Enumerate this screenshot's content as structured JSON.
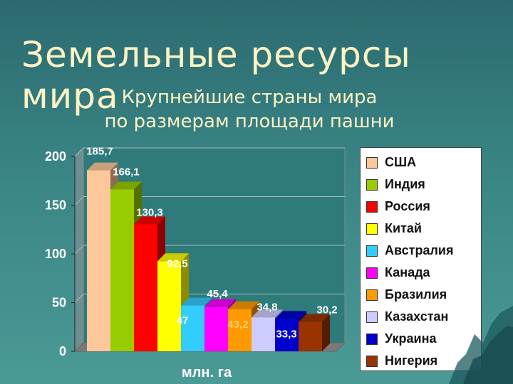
{
  "title": "Земельные ресурсы мира",
  "subtitle": {
    "line1": "Крупнейшие страны мира",
    "line2": "по размерам площади пашни"
  },
  "chart_data": {
    "type": "bar",
    "categories": [
      "США",
      "Индия",
      "Россия",
      "Китай",
      "Австралия",
      "Канада",
      "Бразилия",
      "Казахстан",
      "Украина",
      "Нигерия"
    ],
    "values": [
      185.7,
      166.1,
      130.3,
      92.5,
      47,
      45.4,
      43.2,
      34.8,
      33.3,
      30.2
    ],
    "value_labels": [
      "185,7",
      "166,1",
      "130,3",
      "92,5",
      "47",
      "45,4",
      "43,2",
      "34,8",
      "33,3",
      "30,2"
    ],
    "colors": [
      "#fcc79a",
      "#99cc00",
      "#ff0000",
      "#ffff00",
      "#33ccff",
      "#ff00ff",
      "#ff9900",
      "#ccccff",
      "#0000cc",
      "#993300"
    ],
    "ylim": [
      0,
      200
    ],
    "yticks": [
      "0",
      "50",
      "100",
      "150",
      "200"
    ],
    "ytick_values": [
      0,
      50,
      100,
      150,
      200
    ],
    "xlabel": "млн. га",
    "ylabel": "",
    "grid": true,
    "legend_position": "right"
  }
}
